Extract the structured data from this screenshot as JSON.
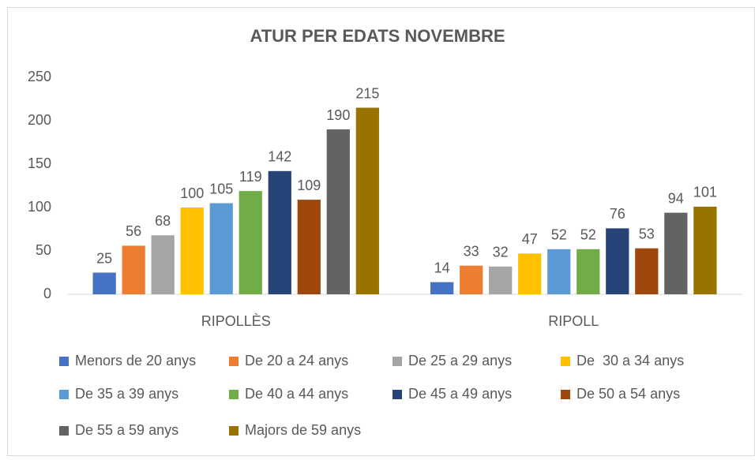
{
  "chart_data": {
    "type": "bar",
    "title": "ATUR PER EDATS NOVEMBRE",
    "categories": [
      "RIPOLLÈS",
      "RIPOLL"
    ],
    "series": [
      {
        "name": "Menors de 20 anys",
        "color": "#4472c4",
        "values": [
          25,
          14
        ]
      },
      {
        "name": "De 20 a 24 anys",
        "color": "#ed7d31",
        "values": [
          56,
          33
        ]
      },
      {
        "name": "De 25 a 29 anys",
        "color": "#a5a5a5",
        "values": [
          68,
          32
        ]
      },
      {
        "name": "De  30 a 34 anys",
        "color": "#ffc000",
        "values": [
          100,
          47
        ]
      },
      {
        "name": "De 35 a 39 anys",
        "color": "#5b9bd5",
        "values": [
          105,
          52
        ]
      },
      {
        "name": "De 40 a 44 anys",
        "color": "#70ad47",
        "values": [
          119,
          52
        ]
      },
      {
        "name": "De 45 a 49 anys",
        "color": "#264478",
        "values": [
          142,
          76
        ]
      },
      {
        "name": "De 50 a 54 anys",
        "color": "#9e480e",
        "values": [
          109,
          53
        ]
      },
      {
        "name": "De 55 a 59 anys",
        "color": "#636363",
        "values": [
          190,
          94
        ]
      },
      {
        "name": "Majors de 59 anys",
        "color": "#997300",
        "values": [
          215,
          101
        ]
      }
    ],
    "ylim": [
      0,
      250
    ],
    "yticks": [
      0,
      50,
      100,
      150,
      200,
      250
    ],
    "grid": false,
    "legend": "bottom"
  }
}
